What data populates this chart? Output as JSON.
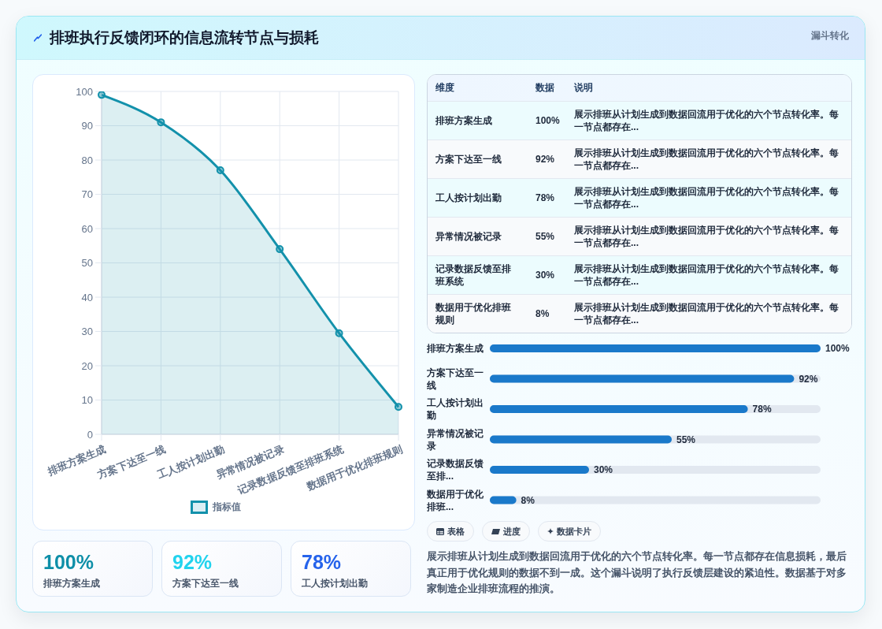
{
  "chart_data": [
    {
      "type": "other",
      "title": "排班执行反馈闭环的信息流转节点与损耗",
      "subtitle": "漏斗转化"
    },
    {
      "type": "area",
      "categories": [
        "排班方案生成",
        "方案下达至一线",
        "工人按计划出勤",
        "异常情况被记录",
        "记录数据反馈至排班系统",
        "数据用于优化排班规则"
      ],
      "series": [
        {
          "name": "指标值",
          "color": "#1391ab",
          "values": [
            99,
            91,
            77,
            54,
            29.5,
            8
          ]
        }
      ],
      "ylim": [
        0,
        100
      ],
      "yticks": [
        0,
        10,
        20,
        30,
        40,
        50,
        60,
        70,
        80,
        90,
        100
      ],
      "grid": true,
      "legend": "bottom",
      "marker": "circle"
    },
    {
      "type": "other",
      "categories": [
        "排班方案生成",
        "方案下达至一线",
        "工人按计划出勤"
      ],
      "value_labels": [
        "100%",
        "92%",
        "78%"
      ]
    },
    {
      "type": "other",
      "categories": [
        "排班方案生成",
        "方案下达至一线",
        "工人按计划出勤",
        "异常情况被记录",
        "记录数据反馈至排班系统",
        "数据用于优化排班规则"
      ],
      "value_labels": [
        "100%",
        "92%",
        "78%",
        "55%",
        "30%",
        "8%"
      ],
      "annotations": [
        "维度",
        "数据",
        "说明",
        "展示排班从计划生成到数据回流用于优化的六个节点转化率。每一节点都存在...",
        "展示排班从计划生成到数据回流用于优化的六个节点转化率。每一节点都存在...",
        "展示排班从计划生成到数据回流用于优化的六个节点转化率。每一节点都存在...",
        "展示排班从计划生成到数据回流用于优化的六个节点转化率。每一节点都存在...",
        "展示排班从计划生成到数据回流用于优化的六个节点转化率。每一节点都存在...",
        "展示排班从计划生成到数据回流用于优化的六个节点转化率。每一节点都存在..."
      ]
    },
    {
      "type": "bar",
      "orientation": "horizontal",
      "categories": [
        "排班方案生成",
        "方案下达至一线",
        "工人按计划出勤",
        "异常情况被记录",
        "记录数据反馈至排...",
        "数据用于优化排班..."
      ],
      "values": [
        100,
        92,
        78,
        55,
        30,
        8
      ],
      "color": "#1a79ca",
      "value_labels": [
        "100%",
        "92%",
        "78%",
        "55%",
        "30%",
        "8%"
      ],
      "tick_labels": "y"
    },
    {
      "type": "other",
      "categories": [
        "表格",
        "进度",
        "数据卡片"
      ],
      "annotations": [
        "展示排班从计划生成到数据回流用于优化的六个节点转化率。每一节点都存在信息损耗，最后真正用于优化规则的数据不到一成。这个漏斗说明了执行反馈层建设的紧迫性。数据基于对多家制造企业排班流程的推演。"
      ]
    }
  ]
}
